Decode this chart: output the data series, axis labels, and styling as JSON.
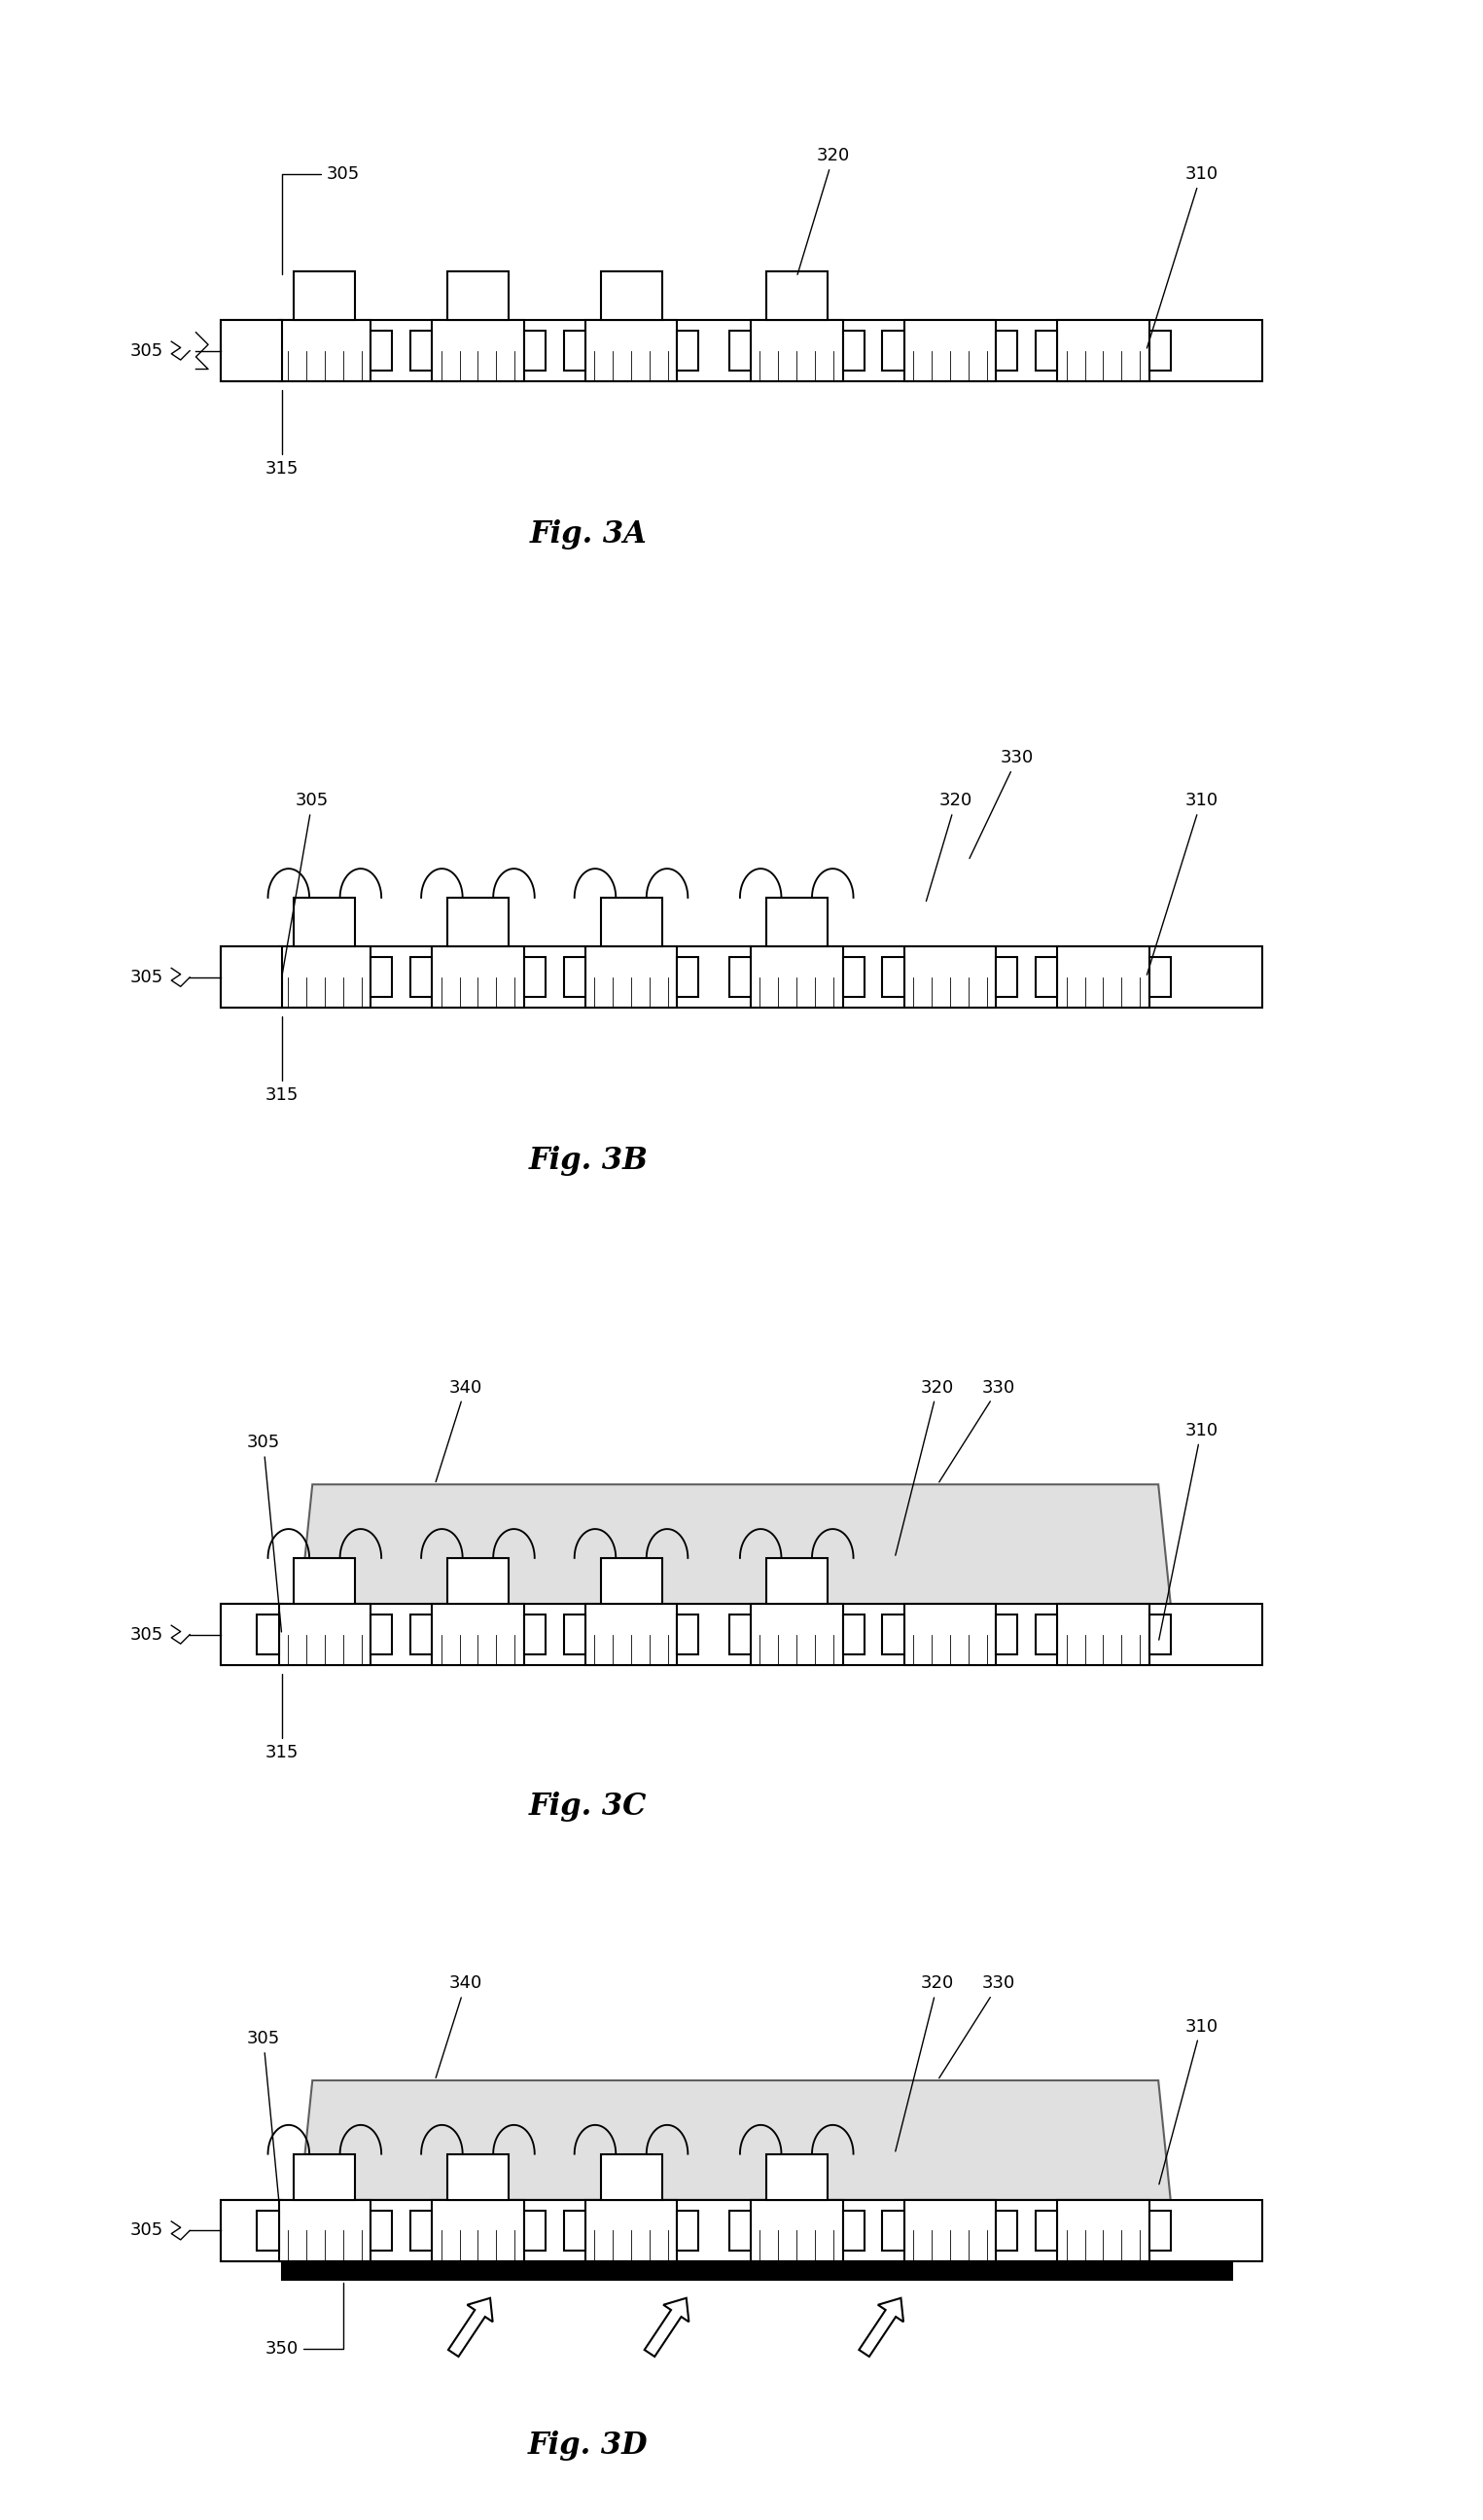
{
  "fig_labels": [
    "Fig. 3A",
    "Fig. 3B",
    "Fig. 3C",
    "Fig. 3D"
  ],
  "background_color": "#ffffff",
  "line_color": "#000000",
  "mold_color": "#cccccc",
  "label_fontsize": 18,
  "fig_label_fontsize": 22,
  "annotations": {
    "3A": {
      "305_top": [
        305,
        "305"
      ],
      "305_left": [
        305,
        "305"
      ],
      "315": [
        315,
        "315"
      ],
      "320": [
        320,
        "320"
      ],
      "310": [
        310,
        "310"
      ]
    },
    "3B": {
      "330": [
        330,
        "330"
      ],
      "320": [
        320,
        "320"
      ],
      "310": [
        310,
        "310"
      ],
      "305": [
        305,
        "305"
      ],
      "315": [
        315,
        "315"
      ]
    },
    "3C": {
      "340": [
        340,
        "340"
      ],
      "320": [
        320,
        "320"
      ],
      "330": [
        330,
        "330"
      ],
      "310": [
        310,
        "310"
      ],
      "305": [
        305,
        "305"
      ],
      "315": [
        315,
        "315"
      ]
    },
    "3D": {
      "340": [
        340,
        "340"
      ],
      "320": [
        320,
        "320"
      ],
      "330": [
        330,
        "330"
      ],
      "310": [
        310,
        "310"
      ],
      "305": [
        305,
        "305"
      ],
      "350": [
        350,
        "350"
      ]
    }
  }
}
